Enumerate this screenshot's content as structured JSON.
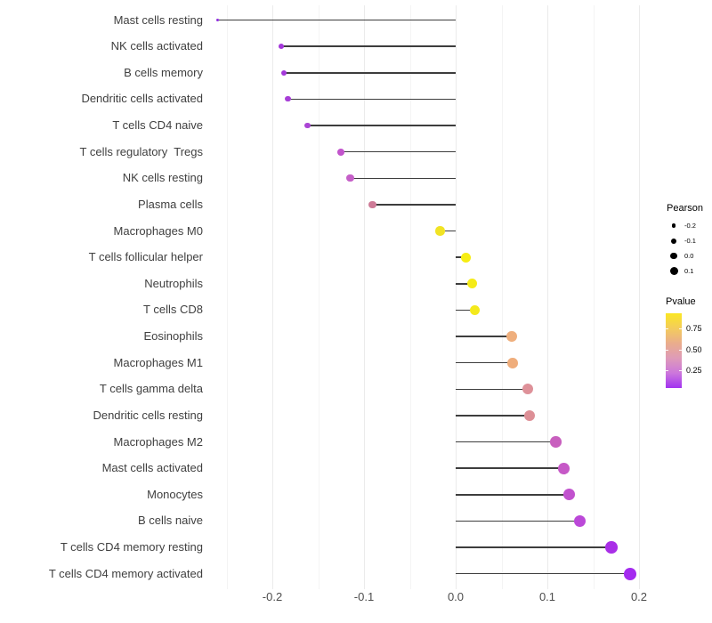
{
  "chart_data": {
    "type": "lollipop",
    "title": "",
    "xlabel": "",
    "ylabel": "",
    "xlim": [
      -0.2825,
      0.2125
    ],
    "grid": "vertical-only",
    "x_ticks": {
      "values": [
        -0.2,
        -0.1,
        0.0,
        0.1,
        0.2
      ],
      "labels": [
        "-0.2",
        "-0.1",
        "0.0",
        "0.1",
        "0.2"
      ]
    },
    "x_minor_ticks": [
      -0.25,
      -0.15,
      -0.05,
      0.05,
      0.15
    ],
    "points": [
      {
        "label": "Mast cells resting",
        "pearson": -0.26,
        "color": "#8F2BE0"
      },
      {
        "label": "NK cells activated",
        "pearson": -0.19,
        "color": "#A438DA"
      },
      {
        "label": "B cells memory",
        "pearson": -0.187,
        "color": "#A438DA"
      },
      {
        "label": "Dendritic cells activated",
        "pearson": -0.183,
        "color": "#A73ED7"
      },
      {
        "label": "T cells CD4 naive",
        "pearson": -0.162,
        "color": "#AB45D5"
      },
      {
        "label": "T cells regulatory  Tregs",
        "pearson": -0.125,
        "color": "#C254CC"
      },
      {
        "label": "NK cells resting",
        "pearson": -0.115,
        "color": "#C55FC8"
      },
      {
        "label": "Plasma cells",
        "pearson": -0.091,
        "color": "#CE7B97"
      },
      {
        "label": "Macrophages M0",
        "pearson": -0.017,
        "color": "#F1E324"
      },
      {
        "label": "T cells follicular helper",
        "pearson": 0.011,
        "color": "#F6ED14"
      },
      {
        "label": "Neutrophils",
        "pearson": 0.018,
        "color": "#F5EB18"
      },
      {
        "label": "T cells CD8",
        "pearson": 0.021,
        "color": "#F4E91C"
      },
      {
        "label": "Eosinophils",
        "pearson": 0.061,
        "color": "#EFAF7D"
      },
      {
        "label": "Macrophages M1",
        "pearson": 0.062,
        "color": "#EFAD7B"
      },
      {
        "label": "T cells gamma delta",
        "pearson": 0.079,
        "color": "#DE9199"
      },
      {
        "label": "Dendritic cells resting",
        "pearson": 0.081,
        "color": "#DD8F96"
      },
      {
        "label": "Macrophages M2",
        "pearson": 0.109,
        "color": "#C85FBE"
      },
      {
        "label": "Mast cells activated",
        "pearson": 0.118,
        "color": "#C659C7"
      },
      {
        "label": "Monocytes",
        "pearson": 0.124,
        "color": "#C152CE"
      },
      {
        "label": "B cells naive",
        "pearson": 0.135,
        "color": "#BB48D8"
      },
      {
        "label": "T cells CD4 memory resting",
        "pearson": 0.17,
        "color": "#A92FE7"
      },
      {
        "label": "T cells CD4 memory activated",
        "pearson": 0.19,
        "color": "#A42BEF"
      }
    ],
    "legend": {
      "size_legend": {
        "title": "Pearson",
        "entries": [
          {
            "label": "-0.2",
            "value": -0.2
          },
          {
            "label": "-0.1",
            "value": -0.1
          },
          {
            "label": "0.0",
            "value": 0.0
          },
          {
            "label": "0.1",
            "value": 0.1
          }
        ]
      },
      "color_legend": {
        "title": "Pvalue",
        "tick_labels": [
          "0.75",
          "0.50",
          "0.25"
        ],
        "gradient_top_to_bottom": [
          "#FBE723",
          "#F3CC5C",
          "#EAAD8C",
          "#DE9BB8",
          "#CC77DC",
          "#A233F0"
        ],
        "stem_color": "#3d3d3d"
      }
    }
  }
}
